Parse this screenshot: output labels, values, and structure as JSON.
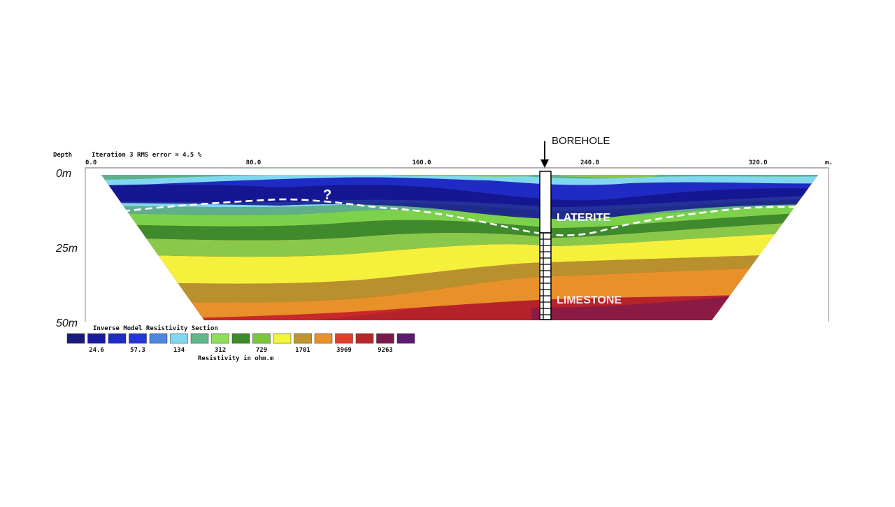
{
  "header": {
    "depth_label": "Depth",
    "iteration_label": "Iteration 3 RMS error = 4.5 %",
    "unit_label": "m."
  },
  "x_ticks": [
    {
      "label": "0.0",
      "value": 0
    },
    {
      "label": "80.0",
      "value": 80
    },
    {
      "label": "160.0",
      "value": 160
    },
    {
      "label": "240.0",
      "value": 240
    },
    {
      "label": "320.0",
      "value": 320
    }
  ],
  "depth_ticks": [
    {
      "label": "0m",
      "value": 0
    },
    {
      "label": "25m",
      "value": 25
    },
    {
      "label": "50m",
      "value": 50
    }
  ],
  "annotations": {
    "borehole": "BOREHOLE",
    "laterite": "LATERITE",
    "limestone": "LIMESTONE",
    "question": "?"
  },
  "legend": {
    "title": "Inverse Model Resistivity Section",
    "unit_caption": "Resistivity in ohm.m",
    "colors": [
      "#1a1a7a",
      "#1a1a9e",
      "#1f2bc4",
      "#2436d8",
      "#4f86e0",
      "#7fd8ef",
      "#5fb88a",
      "#8fdc5a",
      "#3f8a2a",
      "#7cc43a",
      "#f5f53a",
      "#c09530",
      "#e8902a",
      "#e0402a",
      "#b8282a",
      "#7a1a4a",
      "#5a1a6e"
    ],
    "labels": [
      "24.6",
      "57.3",
      "134",
      "312",
      "729",
      "1701",
      "3969",
      "9263"
    ]
  }
}
